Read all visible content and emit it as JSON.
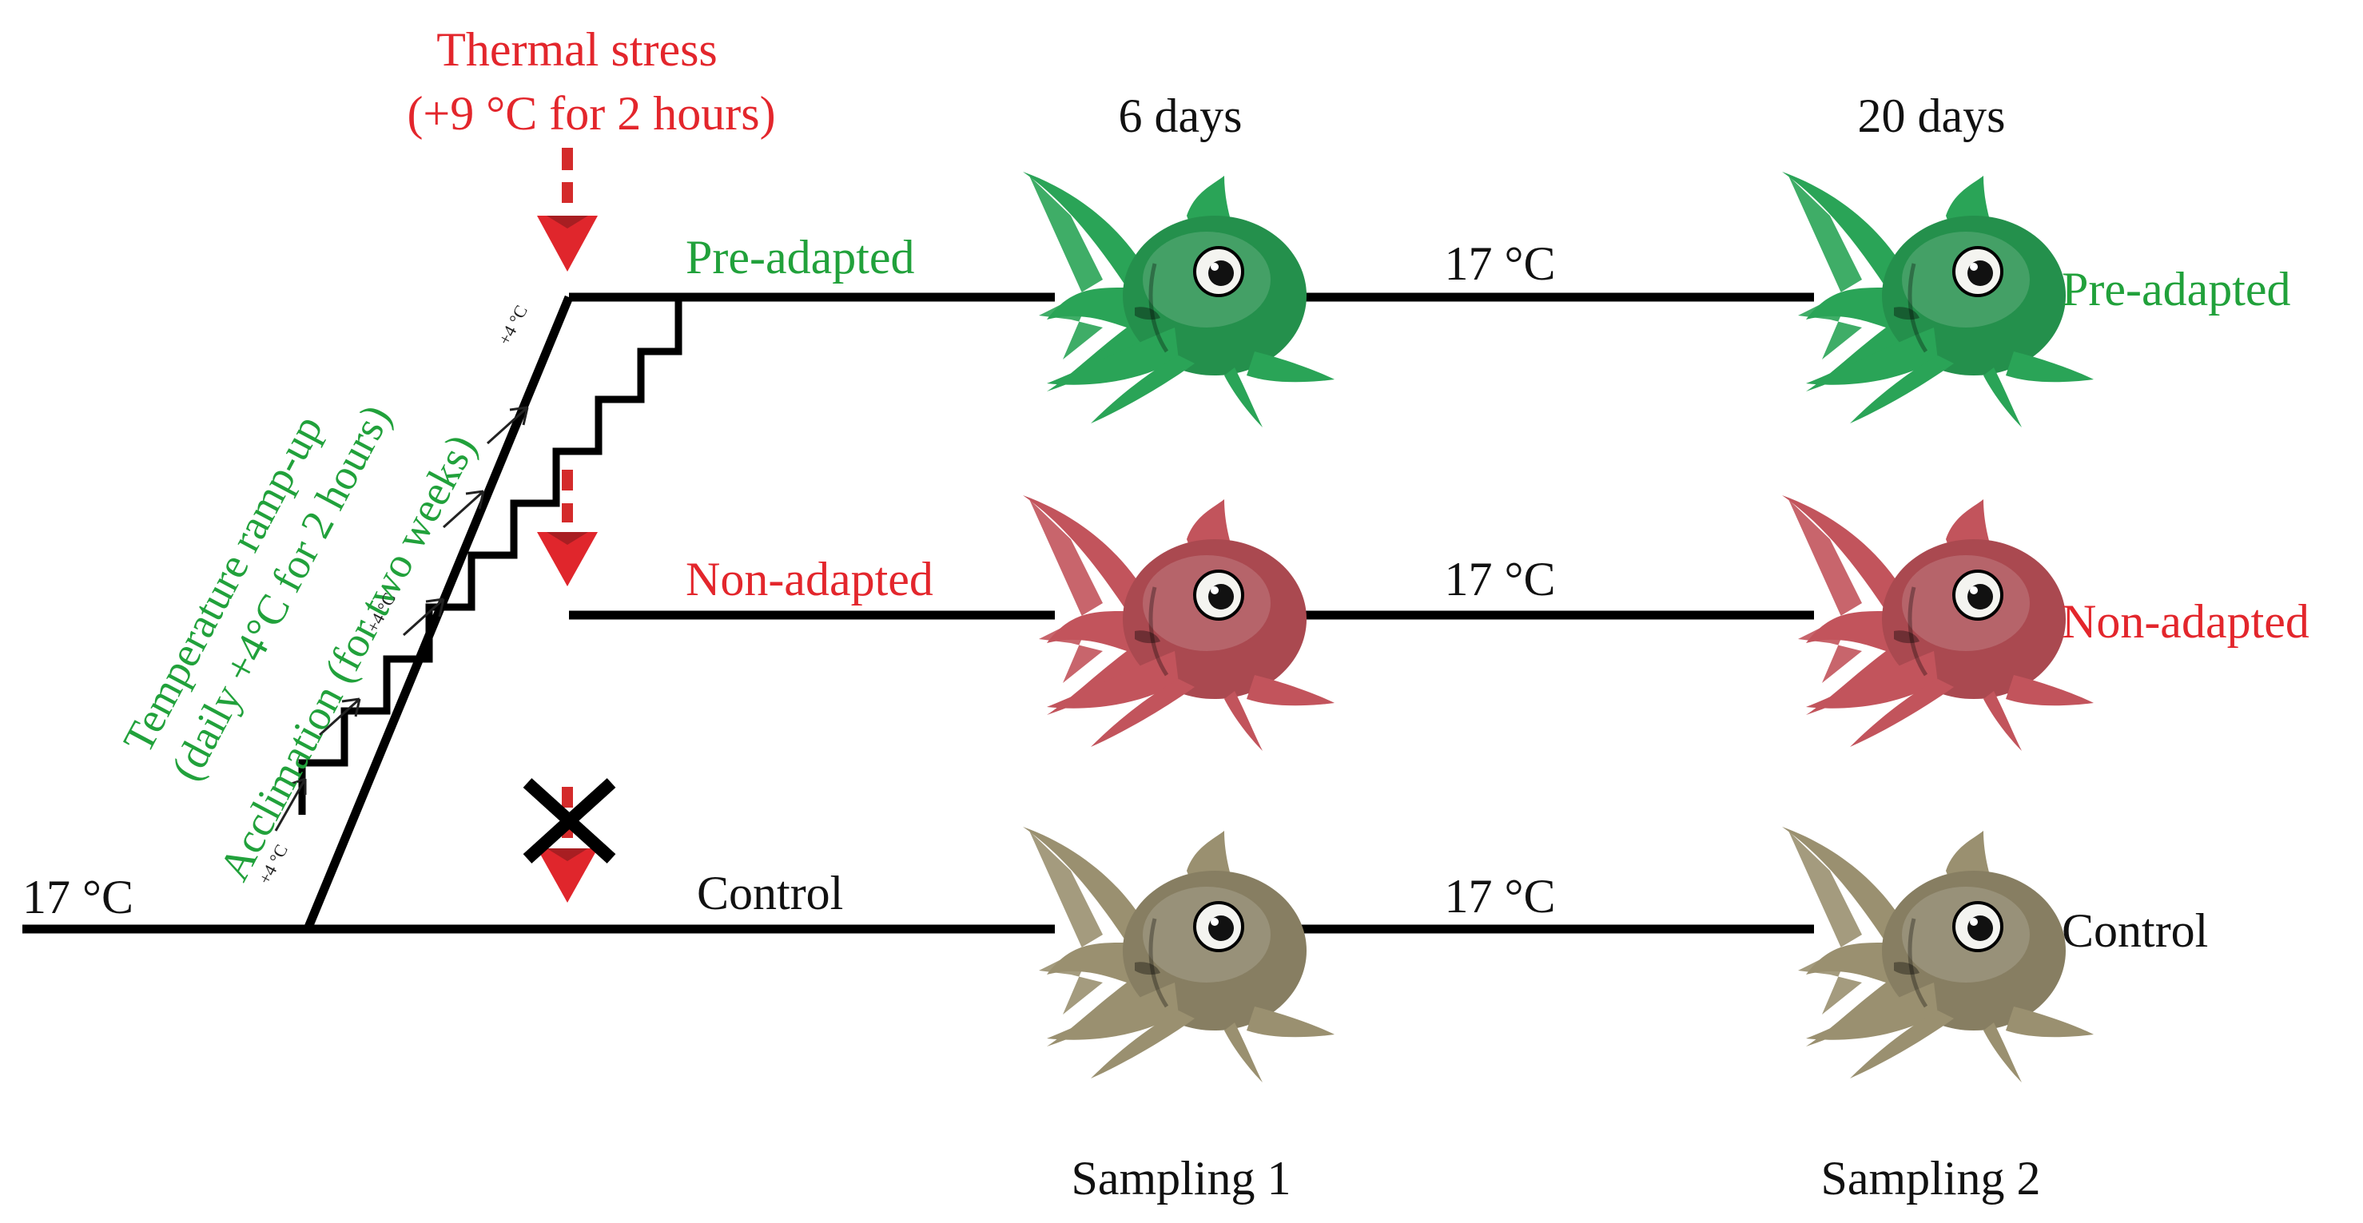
{
  "thermal_stress": {
    "line1": "Thermal stress",
    "line2": "(+9 °C for 2 hours)"
  },
  "timepoints": {
    "t1": "6 days",
    "t2": "20 days"
  },
  "start_temp": "17 °C",
  "rows": [
    {
      "key": "pre",
      "label_left": "Pre-adapted",
      "label_right": "Pre-adapted",
      "temp": "17 °C",
      "color": "#21a13b"
    },
    {
      "key": "non",
      "label_left": "Non-adapted",
      "label_right": "Non-adapted",
      "temp": "17 °C",
      "color": "#e3262c"
    },
    {
      "key": "ctrl",
      "label_left": "Control",
      "label_right": "Control",
      "temp": "17 °C",
      "color": "#111111"
    }
  ],
  "ramp": {
    "line1": "Temperature ramp-up",
    "line2": "(daily +4°C for 2 hours)",
    "line3": "Acclimation (for two weeks)",
    "step_label": "+4 °C",
    "color": "#21a13b"
  },
  "sampling": {
    "s1": "Sampling 1",
    "s2": "Sampling 2"
  },
  "fish_colors": {
    "pre": "#2aa457",
    "non": "#c2545c",
    "ctrl": "#9a9070",
    "stress_arrow": "#d42b2b"
  }
}
